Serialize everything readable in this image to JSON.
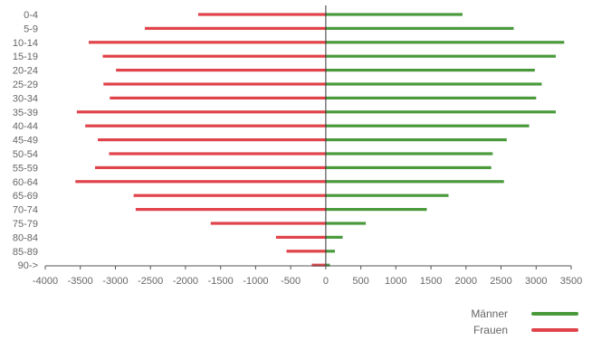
{
  "chart_data": {
    "type": "bar",
    "orientation": "horizontal",
    "layout": "population-pyramid",
    "categories": [
      "0-4",
      "5-9",
      "10-14",
      "15-19",
      "20-24",
      "25-29",
      "30-34",
      "35-39",
      "40-44",
      "45-49",
      "50-54",
      "55-59",
      "60-64",
      "65-69",
      "70-74",
      "75-79",
      "80-84",
      "85-89",
      "90->"
    ],
    "series": [
      {
        "name": "Männer",
        "color": "#4a9a3c",
        "values": [
          1950,
          2680,
          3400,
          3280,
          2980,
          3080,
          3000,
          3280,
          2900,
          2580,
          2380,
          2360,
          2540,
          1750,
          1440,
          570,
          240,
          130,
          60
        ]
      },
      {
        "name": "Frauen",
        "color": "#e0434a",
        "values": [
          -1820,
          -2580,
          -3380,
          -3180,
          -2990,
          -3170,
          -3080,
          -3550,
          -3430,
          -3250,
          -3090,
          -3290,
          -3570,
          -2740,
          -2710,
          -1640,
          -710,
          -560,
          -200
        ]
      }
    ],
    "xaxis": {
      "ticks": [
        -4000,
        -3500,
        -3000,
        -2500,
        -2000,
        -1500,
        -1000,
        -500,
        0,
        500,
        1000,
        1500,
        2000,
        2500,
        3000,
        3500
      ],
      "range": [
        -4000,
        3500
      ]
    },
    "legend_position": "bottom-right",
    "grid": false
  }
}
